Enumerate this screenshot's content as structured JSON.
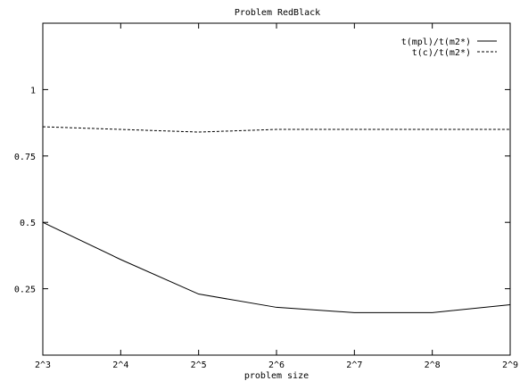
{
  "chart_data": {
    "type": "line",
    "title": "Problem RedBlack",
    "xlabel": "problem size",
    "ylabel": "",
    "categories": [
      "2^3",
      "2^4",
      "2^5",
      "2^6",
      "2^7",
      "2^8",
      "2^9"
    ],
    "ylim": [
      0,
      1.25
    ],
    "yticks": [
      0.25,
      0.5,
      0.75,
      1
    ],
    "ytick_labels": [
      "0.25",
      "0.5",
      "0.75",
      "1"
    ],
    "legend_position": "top-right",
    "grid": false,
    "series": [
      {
        "name": "t(mpl)/t(m2*)",
        "style": "solid",
        "values": [
          0.5,
          0.36,
          0.23,
          0.18,
          0.16,
          0.16,
          0.19
        ]
      },
      {
        "name": "t(c)/t(m2*)",
        "style": "dashed",
        "values": [
          0.86,
          0.85,
          0.84,
          0.85,
          0.85,
          0.85,
          0.85
        ]
      }
    ]
  }
}
